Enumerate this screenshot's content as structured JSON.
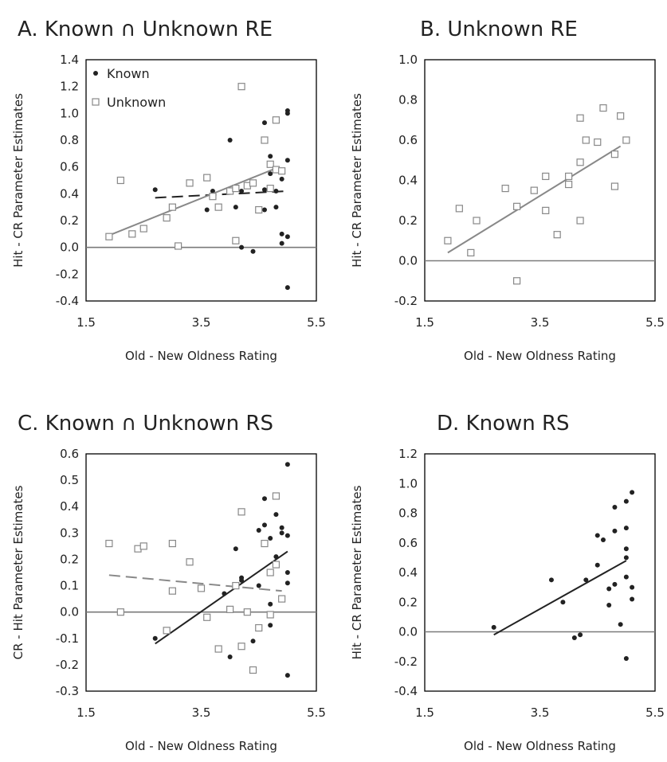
{
  "chart_data": [
    {
      "type": "scatter",
      "title": "A. Known ∩ Unknown RE",
      "xlabel": "Old - New Oldness Rating",
      "ylabel": "Hit - CR Parameter Estimates",
      "xlim": [
        1.5,
        5.5
      ],
      "ylim": [
        -0.4,
        1.4
      ],
      "xticks": [
        "1.5",
        "3.5",
        "5.5"
      ],
      "yticks": [
        "-0.4",
        "-0.2",
        "0.0",
        "0.2",
        "0.4",
        "0.6",
        "0.8",
        "1.0",
        "1.2",
        "1.4"
      ],
      "legend": {
        "position": "top-left",
        "entries": [
          "Known",
          "Unknown"
        ]
      },
      "series": [
        {
          "name": "Known",
          "marker": "filled-circle",
          "color": "#222222",
          "points": [
            [
              2.7,
              0.43
            ],
            [
              3.6,
              0.28
            ],
            [
              3.7,
              0.42
            ],
            [
              4.0,
              0.8
            ],
            [
              4.1,
              0.3
            ],
            [
              4.2,
              0.42
            ],
            [
              4.2,
              0.0
            ],
            [
              4.4,
              -0.03
            ],
            [
              4.6,
              0.28
            ],
            [
              4.6,
              0.93
            ],
            [
              4.6,
              0.43
            ],
            [
              4.7,
              0.55
            ],
            [
              4.7,
              0.68
            ],
            [
              4.8,
              0.3
            ],
            [
              4.8,
              0.42
            ],
            [
              4.9,
              0.51
            ],
            [
              4.9,
              0.1
            ],
            [
              4.9,
              0.03
            ],
            [
              5.0,
              1.0
            ],
            [
              5.0,
              1.02
            ],
            [
              5.0,
              0.65
            ],
            [
              5.0,
              0.08
            ],
            [
              5.0,
              -0.3
            ]
          ],
          "fit_line": {
            "x": [
              2.7,
              5.0
            ],
            "y": [
              0.37,
              0.42
            ],
            "style": "dashed"
          }
        },
        {
          "name": "Unknown",
          "marker": "open-square",
          "color": "#888888",
          "points": [
            [
              1.9,
              0.08
            ],
            [
              2.1,
              0.5
            ],
            [
              2.3,
              0.1
            ],
            [
              2.5,
              0.14
            ],
            [
              2.9,
              0.22
            ],
            [
              3.0,
              0.3
            ],
            [
              3.1,
              0.01
            ],
            [
              3.3,
              0.48
            ],
            [
              3.6,
              0.52
            ],
            [
              3.7,
              0.38
            ],
            [
              3.8,
              0.3
            ],
            [
              4.0,
              0.42
            ],
            [
              4.1,
              0.05
            ],
            [
              4.1,
              0.44
            ],
            [
              4.2,
              1.2
            ],
            [
              4.3,
              0.46
            ],
            [
              4.4,
              0.48
            ],
            [
              4.5,
              0.28
            ],
            [
              4.6,
              0.8
            ],
            [
              4.7,
              0.62
            ],
            [
              4.7,
              0.44
            ],
            [
              4.8,
              0.95
            ],
            [
              4.8,
              0.58
            ],
            [
              4.9,
              0.57
            ]
          ],
          "fit_line": {
            "x": [
              1.9,
              4.8
            ],
            "y": [
              0.09,
              0.59
            ],
            "style": "solid"
          }
        }
      ]
    },
    {
      "type": "scatter",
      "title": "B. Unknown RE",
      "xlabel": "Old - New Oldness Rating",
      "ylabel": "Hit - CR Parameter Estimates",
      "xlim": [
        1.5,
        5.5
      ],
      "ylim": [
        -0.2,
        1.0
      ],
      "xticks": [
        "1.5",
        "3.5",
        "5.5"
      ],
      "yticks": [
        "-0.2",
        "0.0",
        "0.2",
        "0.4",
        "0.6",
        "0.8",
        "1.0"
      ],
      "series": [
        {
          "marker": "open-square",
          "color": "#888888",
          "points": [
            [
              1.9,
              0.1
            ],
            [
              2.1,
              0.26
            ],
            [
              2.3,
              0.04
            ],
            [
              2.4,
              0.2
            ],
            [
              2.9,
              0.36
            ],
            [
              3.1,
              0.27
            ],
            [
              3.1,
              -0.1
            ],
            [
              3.4,
              0.35
            ],
            [
              3.6,
              0.42
            ],
            [
              3.6,
              0.25
            ],
            [
              3.8,
              0.13
            ],
            [
              4.0,
              0.38
            ],
            [
              4.0,
              0.42
            ],
            [
              4.2,
              0.71
            ],
            [
              4.2,
              0.2
            ],
            [
              4.2,
              0.49
            ],
            [
              4.3,
              0.6
            ],
            [
              4.5,
              0.59
            ],
            [
              4.6,
              0.76
            ],
            [
              4.8,
              0.53
            ],
            [
              4.8,
              0.37
            ],
            [
              4.9,
              0.72
            ],
            [
              5.0,
              0.6
            ]
          ],
          "fit_line": {
            "x": [
              1.9,
              4.9
            ],
            "y": [
              0.04,
              0.57
            ],
            "style": "solid"
          }
        }
      ]
    },
    {
      "type": "scatter",
      "title": "C. Known ∩ Unknown RS",
      "xlabel": "Old - New Oldness Rating",
      "ylabel": "CR - Hit Parameter Estimates",
      "xlim": [
        1.5,
        5.5
      ],
      "ylim": [
        -0.3,
        0.6
      ],
      "xticks": [
        "1.5",
        "3.5",
        "5.5"
      ],
      "yticks": [
        "-0.3",
        "-0.2",
        "-0.1",
        "0.0",
        "0.1",
        "0.2",
        "0.3",
        "0.4",
        "0.5",
        "0.6"
      ],
      "series": [
        {
          "marker": "filled-circle",
          "color": "#222222",
          "points": [
            [
              2.7,
              -0.1
            ],
            [
              3.9,
              0.07
            ],
            [
              4.0,
              -0.17
            ],
            [
              4.1,
              0.24
            ],
            [
              4.2,
              0.13
            ],
            [
              4.2,
              0.12
            ],
            [
              4.4,
              -0.11
            ],
            [
              4.5,
              0.31
            ],
            [
              4.5,
              0.1
            ],
            [
              4.6,
              0.33
            ],
            [
              4.6,
              0.43
            ],
            [
              4.7,
              0.28
            ],
            [
              4.7,
              0.03
            ],
            [
              4.7,
              -0.05
            ],
            [
              4.8,
              0.21
            ],
            [
              4.8,
              0.37
            ],
            [
              4.9,
              0.32
            ],
            [
              4.9,
              0.3
            ],
            [
              5.0,
              0.56
            ],
            [
              5.0,
              0.15
            ],
            [
              5.0,
              0.11
            ],
            [
              5.0,
              0.29
            ],
            [
              5.0,
              -0.24
            ]
          ],
          "fit_line": {
            "x": [
              2.7,
              5.0
            ],
            "y": [
              -0.12,
              0.23
            ],
            "style": "solid"
          }
        },
        {
          "marker": "open-square",
          "color": "#888888",
          "points": [
            [
              1.9,
              0.26
            ],
            [
              2.1,
              0.0
            ],
            [
              2.4,
              0.24
            ],
            [
              2.5,
              0.25
            ],
            [
              2.9,
              -0.07
            ],
            [
              3.0,
              0.08
            ],
            [
              3.0,
              0.26
            ],
            [
              3.3,
              0.19
            ],
            [
              3.5,
              0.09
            ],
            [
              3.6,
              -0.02
            ],
            [
              3.8,
              -0.14
            ],
            [
              4.0,
              0.01
            ],
            [
              4.1,
              0.1
            ],
            [
              4.2,
              0.38
            ],
            [
              4.2,
              -0.13
            ],
            [
              4.3,
              0.0
            ],
            [
              4.4,
              -0.22
            ],
            [
              4.5,
              -0.06
            ],
            [
              4.6,
              0.26
            ],
            [
              4.7,
              0.15
            ],
            [
              4.7,
              -0.01
            ],
            [
              4.8,
              0.44
            ],
            [
              4.8,
              0.18
            ],
            [
              4.9,
              0.05
            ]
          ],
          "fit_line": {
            "x": [
              1.9,
              4.9
            ],
            "y": [
              0.14,
              0.08
            ],
            "style": "dashed"
          }
        }
      ]
    },
    {
      "type": "scatter",
      "title": "D. Known RS",
      "xlabel": "Old - New Oldness Rating",
      "ylabel": "Hit - CR Parameter Estimates",
      "xlim": [
        1.5,
        5.5
      ],
      "ylim": [
        -0.4,
        1.2
      ],
      "xticks": [
        "1.5",
        "3.5",
        "5.5"
      ],
      "yticks": [
        "-0.4",
        "-0.2",
        "0.0",
        "0.2",
        "0.4",
        "0.6",
        "0.8",
        "1.0",
        "1.2"
      ],
      "series": [
        {
          "marker": "filled-circle",
          "color": "#222222",
          "points": [
            [
              2.7,
              0.03
            ],
            [
              3.7,
              0.35
            ],
            [
              3.9,
              0.2
            ],
            [
              4.1,
              -0.04
            ],
            [
              4.2,
              -0.02
            ],
            [
              4.3,
              0.35
            ],
            [
              4.5,
              0.45
            ],
            [
              4.5,
              0.65
            ],
            [
              4.6,
              0.62
            ],
            [
              4.7,
              0.18
            ],
            [
              4.7,
              0.29
            ],
            [
              4.8,
              0.84
            ],
            [
              4.8,
              0.68
            ],
            [
              4.8,
              0.32
            ],
            [
              4.9,
              0.05
            ],
            [
              5.0,
              0.56
            ],
            [
              5.0,
              0.7
            ],
            [
              5.0,
              0.5
            ],
            [
              5.0,
              0.37
            ],
            [
              5.0,
              0.88
            ],
            [
              5.0,
              -0.18
            ],
            [
              5.1,
              0.94
            ],
            [
              5.1,
              0.3
            ],
            [
              5.1,
              0.22
            ]
          ],
          "fit_line": {
            "x": [
              2.7,
              5.0
            ],
            "y": [
              -0.02,
              0.48
            ],
            "style": "solid"
          }
        }
      ]
    }
  ]
}
